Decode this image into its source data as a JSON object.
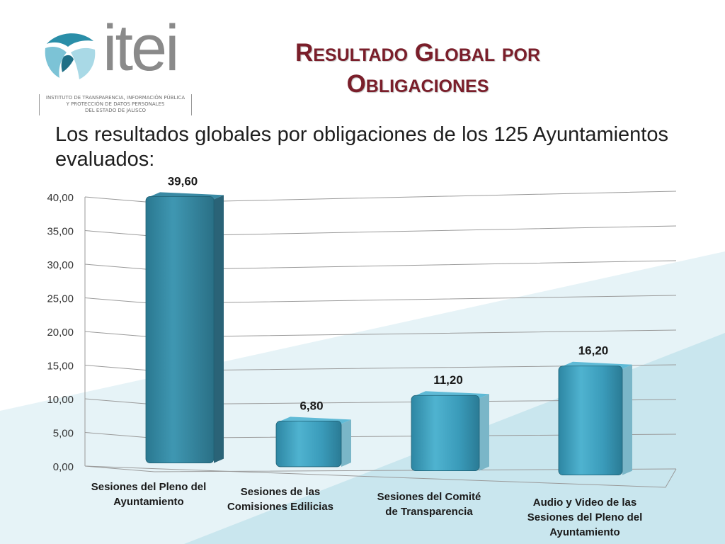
{
  "slide": {
    "title_line1": "Resultado Global por",
    "title_line2": "Obligaciones",
    "intro": "Los resultados globales por obligaciones de los 125 Ayuntamientos evaluados:",
    "logo": {
      "wordmark": "itei",
      "sub_line1": "INSTITUTO DE TRANSPARENCIA, INFORMACIÓN PÚBLICA",
      "sub_line2": "Y PROTECCIÓN DE DATOS PERSONALES",
      "sub_line3": "DEL ESTADO DE JALISCO"
    }
  },
  "colors": {
    "title": "#7a1e2a",
    "bar_front": "#3a9bba",
    "bar_side": "#2a6f87",
    "first_bar": "#2f7e96",
    "grid": "#9a9a9a",
    "accent_light": "#d3ebf2"
  },
  "chart_data": {
    "type": "bar",
    "categories": [
      "Sesiones del Pleno del Ayuntamiento",
      "Sesiones de las Comisiones Edilicias",
      "Sesiones del Comité de Transparencia",
      "Audio y Video de las Sesiones del Pleno del Ayuntamiento"
    ],
    "category_lines": [
      [
        "Sesiones del Pleno del",
        "Ayuntamiento"
      ],
      [
        "Sesiones de las",
        "Comisiones Edilicias"
      ],
      [
        "Sesiones del Comité",
        "de Transparencia"
      ],
      [
        "Audio y Video de las",
        "Sesiones del Pleno del",
        "Ayuntamiento"
      ]
    ],
    "values": [
      39.6,
      6.8,
      11.2,
      16.2
    ],
    "value_labels": [
      "39,60",
      "6,80",
      "11,20",
      "16,20"
    ],
    "ylim": [
      0,
      40
    ],
    "yticks": [
      "0,00",
      "5,00",
      "10,00",
      "15,00",
      "20,00",
      "25,00",
      "30,00",
      "35,00",
      "40,00"
    ],
    "grid": true,
    "legend": "none"
  }
}
